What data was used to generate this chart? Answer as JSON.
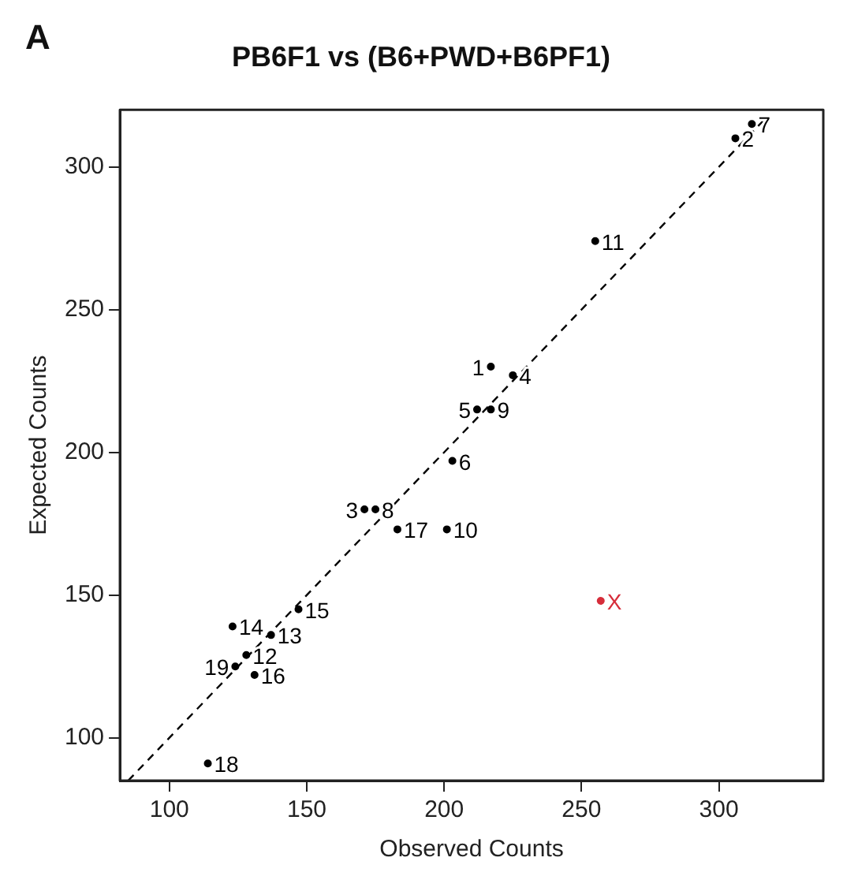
{
  "chart_data": {
    "type": "scatter",
    "title": "PB6F1 vs (B6+PWD+B6PF1)",
    "xlabel": "Observed Counts",
    "ylabel": "Expected Counts",
    "annotations": [
      "A"
    ],
    "xlim": [
      82,
      338
    ],
    "ylim": [
      85,
      320
    ],
    "xticks": [
      100,
      150,
      200,
      250,
      300
    ],
    "yticks": [
      100,
      150,
      200,
      250,
      300
    ],
    "marker": "circle",
    "series": [
      {
        "type": "line",
        "color": "#000000",
        "line_style": "dashed",
        "marker": "none",
        "x": [
          85,
          317
        ],
        "values": [
          85,
          317
        ]
      },
      {
        "name": "1",
        "color": "#000000",
        "x": [
          217
        ],
        "values": [
          230
        ]
      },
      {
        "name": "2",
        "color": "#000000",
        "x": [
          306
        ],
        "values": [
          310
        ]
      },
      {
        "name": "3",
        "color": "#000000",
        "x": [
          171
        ],
        "values": [
          180
        ]
      },
      {
        "name": "4",
        "color": "#000000",
        "x": [
          225
        ],
        "values": [
          227
        ]
      },
      {
        "name": "5",
        "color": "#000000",
        "x": [
          212
        ],
        "values": [
          215
        ]
      },
      {
        "name": "6",
        "color": "#000000",
        "x": [
          203
        ],
        "values": [
          197
        ]
      },
      {
        "name": "7",
        "color": "#000000",
        "x": [
          312
        ],
        "values": [
          315
        ]
      },
      {
        "name": "8",
        "color": "#000000",
        "x": [
          175
        ],
        "values": [
          180
        ]
      },
      {
        "name": "9",
        "color": "#000000",
        "x": [
          217
        ],
        "values": [
          215
        ]
      },
      {
        "name": "10",
        "color": "#000000",
        "x": [
          201
        ],
        "values": [
          173
        ]
      },
      {
        "name": "11",
        "color": "#000000",
        "x": [
          255
        ],
        "values": [
          274
        ]
      },
      {
        "name": "12",
        "color": "#000000",
        "x": [
          128
        ],
        "values": [
          129
        ]
      },
      {
        "name": "13",
        "color": "#000000",
        "x": [
          137
        ],
        "values": [
          136
        ]
      },
      {
        "name": "14",
        "color": "#000000",
        "x": [
          123
        ],
        "values": [
          139
        ]
      },
      {
        "name": "15",
        "color": "#000000",
        "x": [
          147
        ],
        "values": [
          145
        ]
      },
      {
        "name": "16",
        "color": "#000000",
        "x": [
          131
        ],
        "values": [
          122
        ]
      },
      {
        "name": "17",
        "color": "#000000",
        "x": [
          183
        ],
        "values": [
          173
        ]
      },
      {
        "name": "18",
        "color": "#000000",
        "x": [
          114
        ],
        "values": [
          91
        ]
      },
      {
        "name": "19",
        "color": "#000000",
        "x": [
          124
        ],
        "values": [
          125
        ]
      },
      {
        "name": "X",
        "color": "#d62d3a",
        "x": [
          257
        ],
        "values": [
          148
        ]
      }
    ]
  }
}
